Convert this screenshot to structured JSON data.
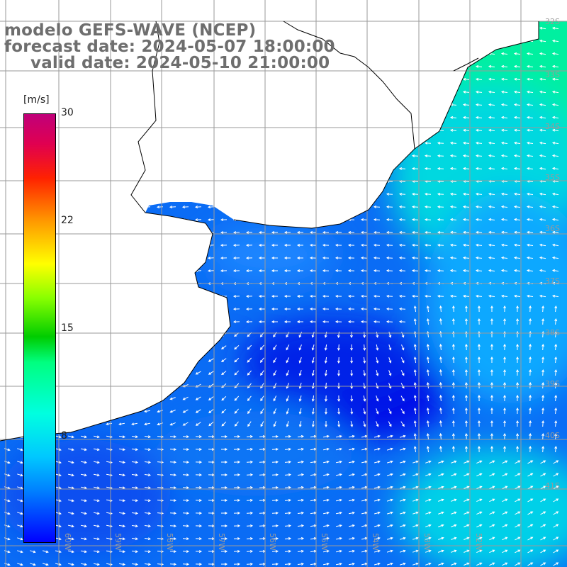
{
  "title": {
    "line1": "modelo GEFS-WAVE (NCEP)",
    "line2": "forecast date: 2024-05-07 18:00:00",
    "line3": "valid date: 2024-05-10 21:00:00"
  },
  "colorbar": {
    "unit": "[m/s]",
    "ticks": [
      "30",
      "22",
      "15",
      "8"
    ],
    "range": [
      0,
      30
    ]
  },
  "lat_labels": [
    "32S",
    "33S",
    "34S",
    "35S",
    "36S",
    "37S",
    "38S",
    "39S",
    "40S",
    "41S"
  ],
  "lon_labels": [
    "60W",
    "59W",
    "58W",
    "57W",
    "56W",
    "55W",
    "54W",
    "53W",
    "52W"
  ],
  "colors": {
    "land": "#ffffff",
    "grid": "#9a9a9a",
    "coast": "#000000",
    "arrow": "#ffffff",
    "title": "#6e6e6e"
  }
}
